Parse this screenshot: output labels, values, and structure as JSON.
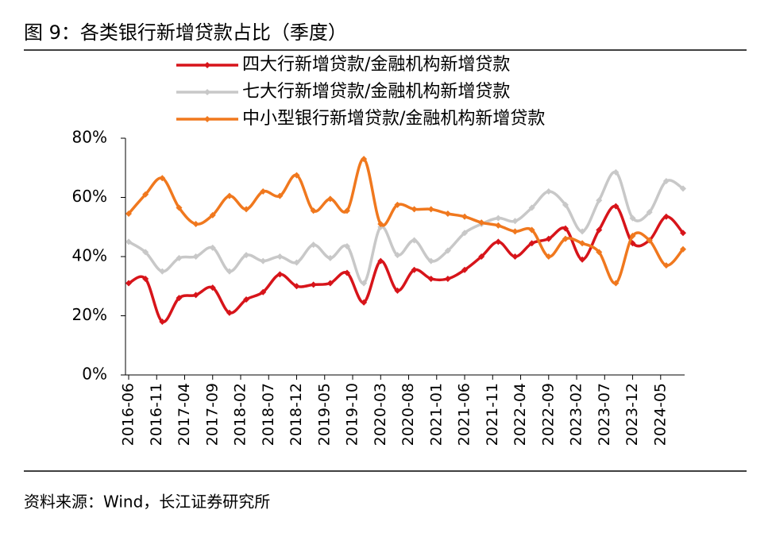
{
  "chart_data": {
    "type": "line",
    "title": "图 9：各类银行新增贷款占比（季度）",
    "source": "资料来源：Wind，长江证券研究所",
    "x": [
      "2016-06",
      "2016-09",
      "2016-12",
      "2017-03",
      "2017-06",
      "2017-09",
      "2017-12",
      "2018-03",
      "2018-06",
      "2018-09",
      "2018-12",
      "2019-03",
      "2019-06",
      "2019-09",
      "2019-12",
      "2020-03",
      "2020-06",
      "2020-09",
      "2020-12",
      "2021-03",
      "2021-06",
      "2021-09",
      "2021-12",
      "2022-03",
      "2022-06",
      "2022-09",
      "2022-12",
      "2023-03",
      "2023-06",
      "2023-09",
      "2023-12",
      "2024-03",
      "2024-06",
      "2024-09"
    ],
    "xticks": [
      "2016-06",
      "2016-11",
      "2017-04",
      "2017-09",
      "2018-02",
      "2018-07",
      "2018-12",
      "2019-05",
      "2019-10",
      "2020-03",
      "2020-08",
      "2021-01",
      "2021-06",
      "2021-11",
      "2022-04",
      "2022-09",
      "2023-02",
      "2023-07",
      "2023-12",
      "2024-05"
    ],
    "ylim": [
      0,
      80
    ],
    "yticks": [
      {
        "value": 0,
        "label": "0%"
      },
      {
        "value": 20,
        "label": "20%"
      },
      {
        "value": 40,
        "label": "40%"
      },
      {
        "value": 60,
        "label": "60%"
      },
      {
        "value": 80,
        "label": "80%"
      }
    ],
    "grid": false,
    "legend": "top",
    "series": [
      {
        "name": "四大行新增贷款/金融机构新增贷款",
        "color": "#d7141a",
        "values": [
          31,
          32.5,
          18,
          26,
          27,
          29.5,
          21,
          25.5,
          28,
          34,
          30,
          30.5,
          31,
          34.5,
          24.5,
          38.5,
          28.5,
          35.5,
          32.5,
          32.5,
          35.5,
          40,
          45,
          40,
          44.5,
          46,
          49.5,
          39,
          49,
          57,
          44.5,
          45.5,
          53.5,
          48
        ]
      },
      {
        "name": "七大行新增贷款/金融机构新增贷款",
        "color": "#c8c8c8",
        "values": [
          45,
          41.5,
          35,
          39.5,
          40,
          43,
          35,
          40.5,
          38.5,
          40,
          38,
          44,
          39.5,
          43.5,
          31,
          50,
          40.5,
          45.5,
          38.5,
          42,
          48,
          51,
          53,
          52,
          56.5,
          62,
          57.5,
          48.5,
          59,
          68.5,
          53,
          55,
          65.5,
          63
        ]
      },
      {
        "name": "中小型银行新增贷款/金融机构新增贷款",
        "color": "#f0781e",
        "values": [
          54.5,
          61,
          66.5,
          56.5,
          51,
          54,
          60.5,
          56,
          62,
          60.5,
          67.5,
          55.5,
          59.5,
          55.5,
          73,
          51,
          57.5,
          56,
          56,
          54.5,
          53.5,
          51.5,
          50.5,
          48.5,
          49,
          40,
          46,
          44.5,
          41.5,
          31,
          47,
          45.5,
          37,
          42.5
        ]
      }
    ]
  }
}
